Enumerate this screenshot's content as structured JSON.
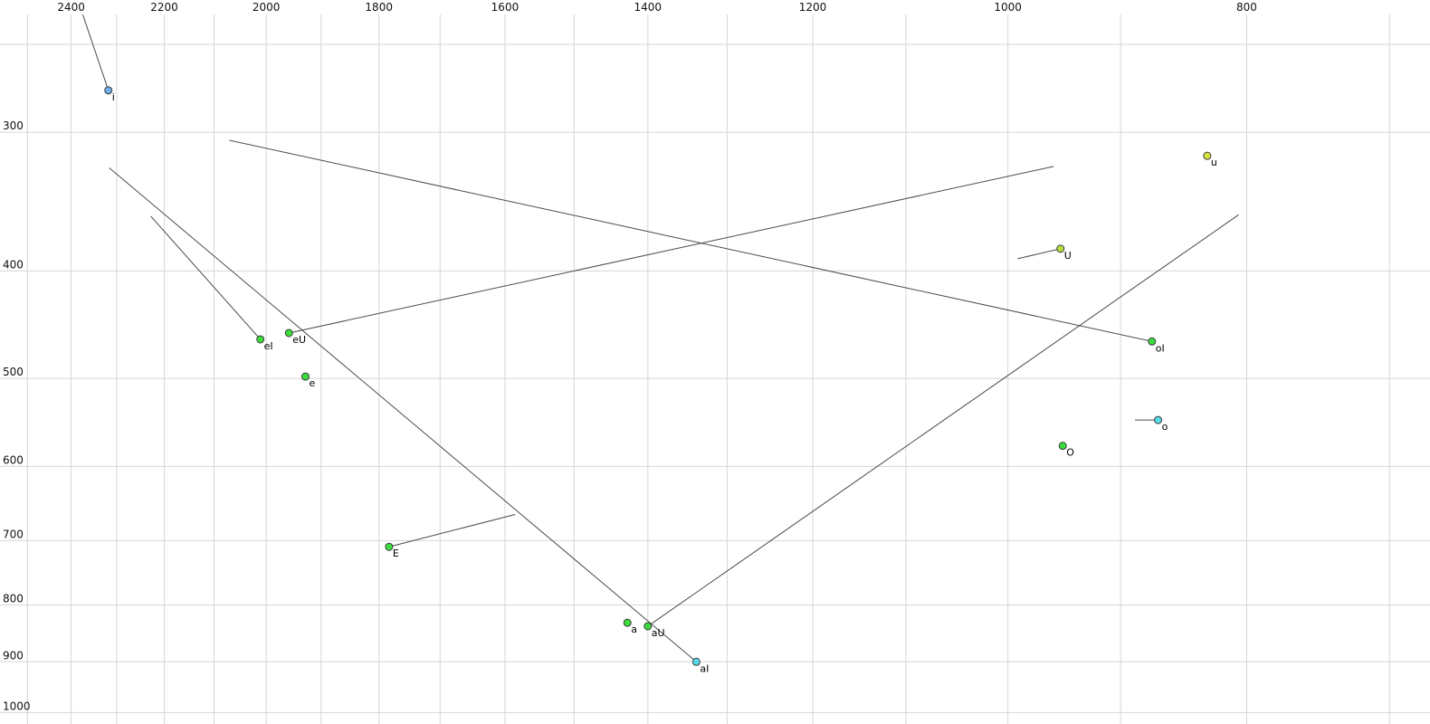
{
  "chart_data": {
    "type": "scatter",
    "title": "",
    "description": "Vowel formant scatter plot (F2 on reversed log x-axis at top, F1 on reversed log y-axis at left) with formant trajectory lines",
    "x_axis": {
      "position": "top",
      "scale": "log",
      "reversed": true,
      "tick_labels": [
        "2400",
        "2200",
        "2000",
        "1800",
        "1600",
        "1400",
        "1200",
        "1000",
        "800"
      ],
      "tick_values": [
        2400,
        2200,
        2000,
        1800,
        1600,
        1400,
        1200,
        1000,
        800
      ],
      "minor_gridlines": [
        2500,
        2300,
        2100,
        1900,
        1700,
        1500,
        1300,
        1100,
        900,
        700
      ],
      "range": [
        2565,
        674
      ]
    },
    "y_axis": {
      "position": "left",
      "scale": "log",
      "reversed": true,
      "tick_labels": [
        "300",
        "400",
        "500",
        "600",
        "700",
        "800",
        "900",
        "1000"
      ],
      "tick_values": [
        300,
        400,
        500,
        600,
        700,
        800,
        900,
        1000
      ],
      "minor_gridlines": [
        250
      ],
      "range": [
        228,
        1024
      ]
    },
    "grid": true,
    "legend": false,
    "points": [
      {
        "label": "i",
        "f2": 2318,
        "f1": 275,
        "color": "#6fb0ee",
        "tail": {
          "f2": 2374,
          "f1": 235
        }
      },
      {
        "label": "u",
        "f2": 830,
        "f1": 315,
        "color": "#d9e53a"
      },
      {
        "label": "U",
        "f2": 952,
        "f1": 382,
        "color": "#b5dc3c",
        "tail": {
          "f2": 991,
          "f1": 390
        }
      },
      {
        "label": "eI",
        "f2": 2011,
        "f1": 461,
        "color": "#3bdc3b",
        "tail": {
          "f2": 2228,
          "f1": 357
        }
      },
      {
        "label": "eU",
        "f2": 1958,
        "f1": 455,
        "color": "#3bdc3b",
        "tail": {
          "f2": 958,
          "f1": 322
        }
      },
      {
        "label": "e",
        "f2": 1928,
        "f1": 498,
        "color": "#3bdc3b"
      },
      {
        "label": "oI",
        "f2": 874,
        "f1": 463,
        "color": "#3bdc3b",
        "tail": {
          "f2": 2070,
          "f1": 305
        }
      },
      {
        "label": "o",
        "f2": 869,
        "f1": 545,
        "color": "#55dbe8",
        "tail": {
          "f2": 888,
          "f1": 545
        }
      },
      {
        "label": "O",
        "f2": 950,
        "f1": 575,
        "color": "#3bdc3b"
      },
      {
        "label": "E",
        "f2": 1783,
        "f1": 709,
        "color": "#3bdc3b",
        "tail": {
          "f2": 1585,
          "f1": 663
        }
      },
      {
        "label": "a",
        "f2": 1427,
        "f1": 830,
        "color": "#3bdc3b"
      },
      {
        "label": "aU",
        "f2": 1400,
        "f1": 836,
        "color": "#3bdc3b",
        "tail": {
          "f2": 806,
          "f1": 356
        }
      },
      {
        "label": "aI",
        "f2": 1338,
        "f1": 900,
        "color": "#55dbe8",
        "tail": {
          "f2": 2316,
          "f1": 323
        }
      }
    ],
    "colors": {
      "background": "#ffffff",
      "grid": "#d6d6d6",
      "line": "#4a4a4a",
      "tick_text": "#111111",
      "point_stroke": "#3a3a3a",
      "label_text": "#000000"
    }
  }
}
